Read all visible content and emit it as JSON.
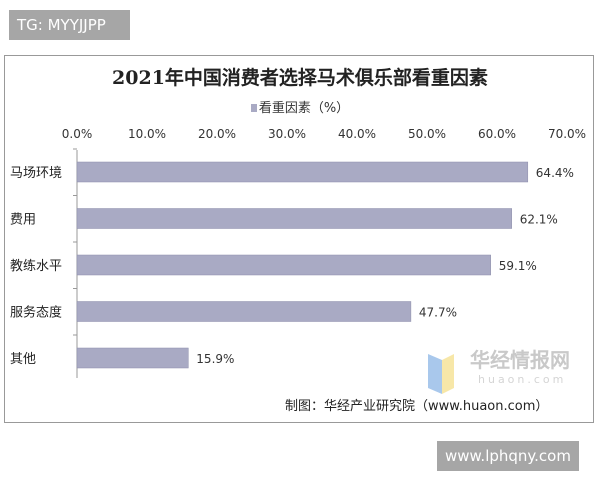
{
  "watermark_top": "TG: MYYJJPP",
  "watermark_bottom": "www.lphqny.com",
  "source": "制图：华经产业研究院（www.huaon.com）",
  "logo": {
    "text": "华经情报网",
    "sub": "huaon.com"
  },
  "chart_data": {
    "type": "bar",
    "orientation": "horizontal",
    "title": "2021年中国消费者选择马术俱乐部看重因素",
    "legend": "看重因素（%）",
    "legend_position": "top",
    "categories": [
      "马场环境",
      "费用",
      "教练水平",
      "服务态度",
      "其他"
    ],
    "values": [
      64.4,
      62.1,
      59.1,
      47.7,
      15.9
    ],
    "data_labels": [
      "64.4%",
      "62.1%",
      "59.1%",
      "47.7%",
      "15.9%"
    ],
    "xlim": [
      0,
      70
    ],
    "x_ticks": [
      "0.0%",
      "10.0%",
      "20.0%",
      "30.0%",
      "40.0%",
      "50.0%",
      "60.0%",
      "70.0%"
    ],
    "x_axis_position": "top",
    "grid": false,
    "bar_color": "#a9aac4"
  }
}
